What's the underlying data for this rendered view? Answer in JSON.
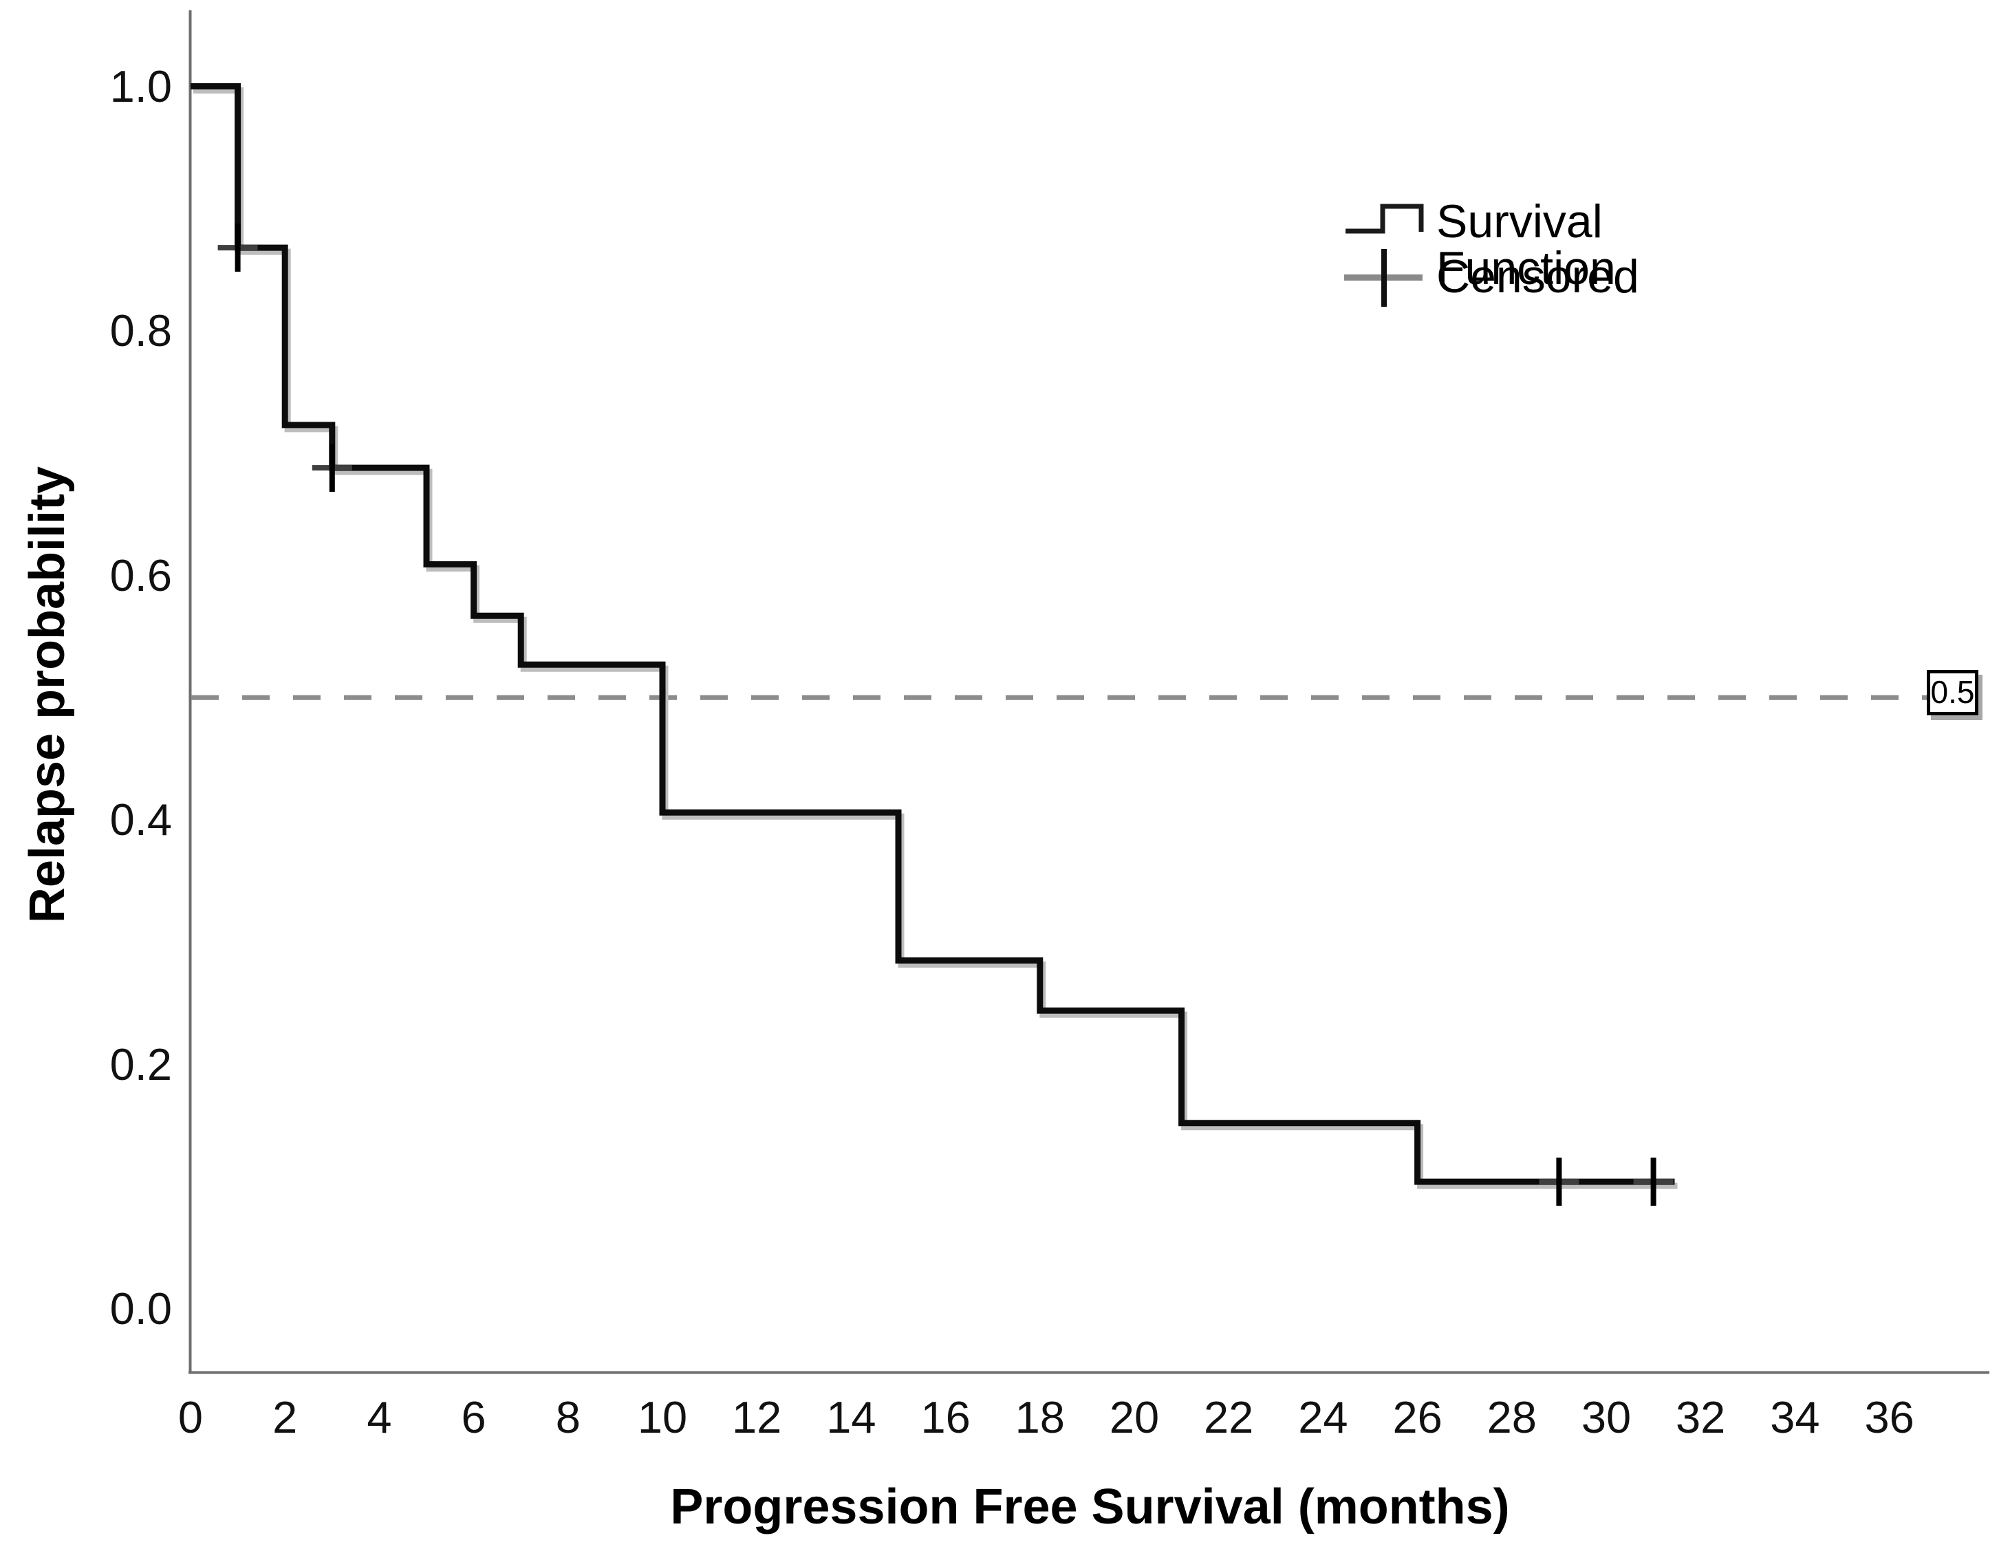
{
  "chart_data": {
    "type": "line",
    "chart_kind": "kaplan_meier_step_plot",
    "title": "",
    "xlabel": "Progression Free Survival (months)",
    "ylabel": "Relapse probability",
    "xlim": [
      0,
      37.5
    ],
    "ylim": [
      0.0,
      1.0
    ],
    "grid": false,
    "x_ticks": [
      0,
      2,
      4,
      6,
      8,
      10,
      12,
      14,
      16,
      18,
      20,
      22,
      24,
      26,
      28,
      30,
      32,
      34,
      36
    ],
    "y_tick_labels": [
      "1.0",
      "0.8",
      "0.6",
      "0.4",
      "0.2",
      "0.0"
    ],
    "y_tick_values": [
      1.0,
      0.8,
      0.6,
      0.4,
      0.2,
      0.0
    ],
    "series": [
      {
        "name": "Survival Function",
        "type": "step",
        "color": "#0c0c0c",
        "steps": [
          {
            "from": 0,
            "to": 1,
            "value": 1.0
          },
          {
            "from": 1,
            "to": 2,
            "value": 0.868
          },
          {
            "from": 2,
            "to": 3,
            "value": 0.723
          },
          {
            "from": 3,
            "to": 5,
            "value": 0.688
          },
          {
            "from": 5,
            "to": 6,
            "value": 0.609
          },
          {
            "from": 6,
            "to": 7,
            "value": 0.567
          },
          {
            "from": 7,
            "to": 10,
            "value": 0.527
          },
          {
            "from": 10,
            "to": 15,
            "value": 0.406
          },
          {
            "from": 15,
            "to": 18,
            "value": 0.285
          },
          {
            "from": 18,
            "to": 21,
            "value": 0.244
          },
          {
            "from": 21,
            "to": 26,
            "value": 0.152
          },
          {
            "from": 26,
            "to": 31.45,
            "value": 0.104
          }
        ]
      }
    ],
    "censored_points": [
      {
        "x": 1,
        "y": 0.868
      },
      {
        "x": 3,
        "y": 0.688
      },
      {
        "x": 29,
        "y": 0.104
      },
      {
        "x": 31,
        "y": 0.104
      }
    ],
    "reference_line": {
      "y": 0.5,
      "label": "0.5",
      "style": "dashed"
    },
    "legend_position": "upper right",
    "legend": {
      "items": [
        {
          "label": "Survival Function",
          "symbol": "step-line"
        },
        {
          "label": "Censored",
          "symbol": "plus-cross"
        }
      ]
    }
  },
  "colors": {
    "curve": "#0c0c0c",
    "curve_shadow": "#bdbdbd",
    "axis": "#6e6e6e",
    "dashed_reference": "#8c8c8c",
    "censor_horizontal_bar": "#3f3f3f",
    "censor_vertical_bar": "#000000",
    "legend_censor_bar": "#8a8a8a",
    "text": "#000000",
    "background": "#ffffff"
  }
}
